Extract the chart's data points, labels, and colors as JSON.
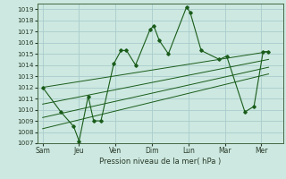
{
  "bg_color": "#cce8e0",
  "grid_color": "#aacccc",
  "line_color": "#1a5c1a",
  "ylabel_text": "Pression niveau de la mer( hPa )",
  "ylim": [
    1007,
    1019.5
  ],
  "yticks": [
    1007,
    1008,
    1009,
    1010,
    1011,
    1012,
    1013,
    1014,
    1015,
    1016,
    1017,
    1018,
    1019
  ],
  "x_labels": [
    "Sam",
    "Jeu",
    "Ven",
    "Dim",
    "Lun",
    "Mar",
    "Mer"
  ],
  "x_positions": [
    0,
    2,
    4,
    6,
    8,
    10,
    12
  ],
  "xlim": [
    -0.3,
    13.2
  ],
  "main_x": [
    0,
    1.0,
    1.7,
    2.0,
    2.5,
    2.8,
    3.2,
    3.9,
    4.3,
    4.6,
    5.1,
    5.9,
    6.1,
    6.4,
    6.9,
    7.9,
    8.1,
    8.7,
    9.7,
    10.1,
    11.1,
    11.6,
    12.1,
    12.4
  ],
  "main_y": [
    1012,
    1009.8,
    1008.5,
    1007.2,
    1011.2,
    1009.0,
    1009.0,
    1014.1,
    1015.3,
    1015.3,
    1014.0,
    1017.2,
    1017.5,
    1016.2,
    1015.0,
    1019.2,
    1018.7,
    1015.3,
    1014.5,
    1014.8,
    1009.8,
    1010.3,
    1015.2,
    1015.2
  ],
  "trend_lines": [
    {
      "x": [
        0,
        12.4
      ],
      "y": [
        1012.0,
        1015.2
      ]
    },
    {
      "x": [
        0,
        12.4
      ],
      "y": [
        1010.5,
        1014.5
      ]
    },
    {
      "x": [
        0,
        12.4
      ],
      "y": [
        1009.3,
        1013.8
      ]
    },
    {
      "x": [
        0,
        12.4
      ],
      "y": [
        1008.3,
        1013.2
      ]
    }
  ]
}
